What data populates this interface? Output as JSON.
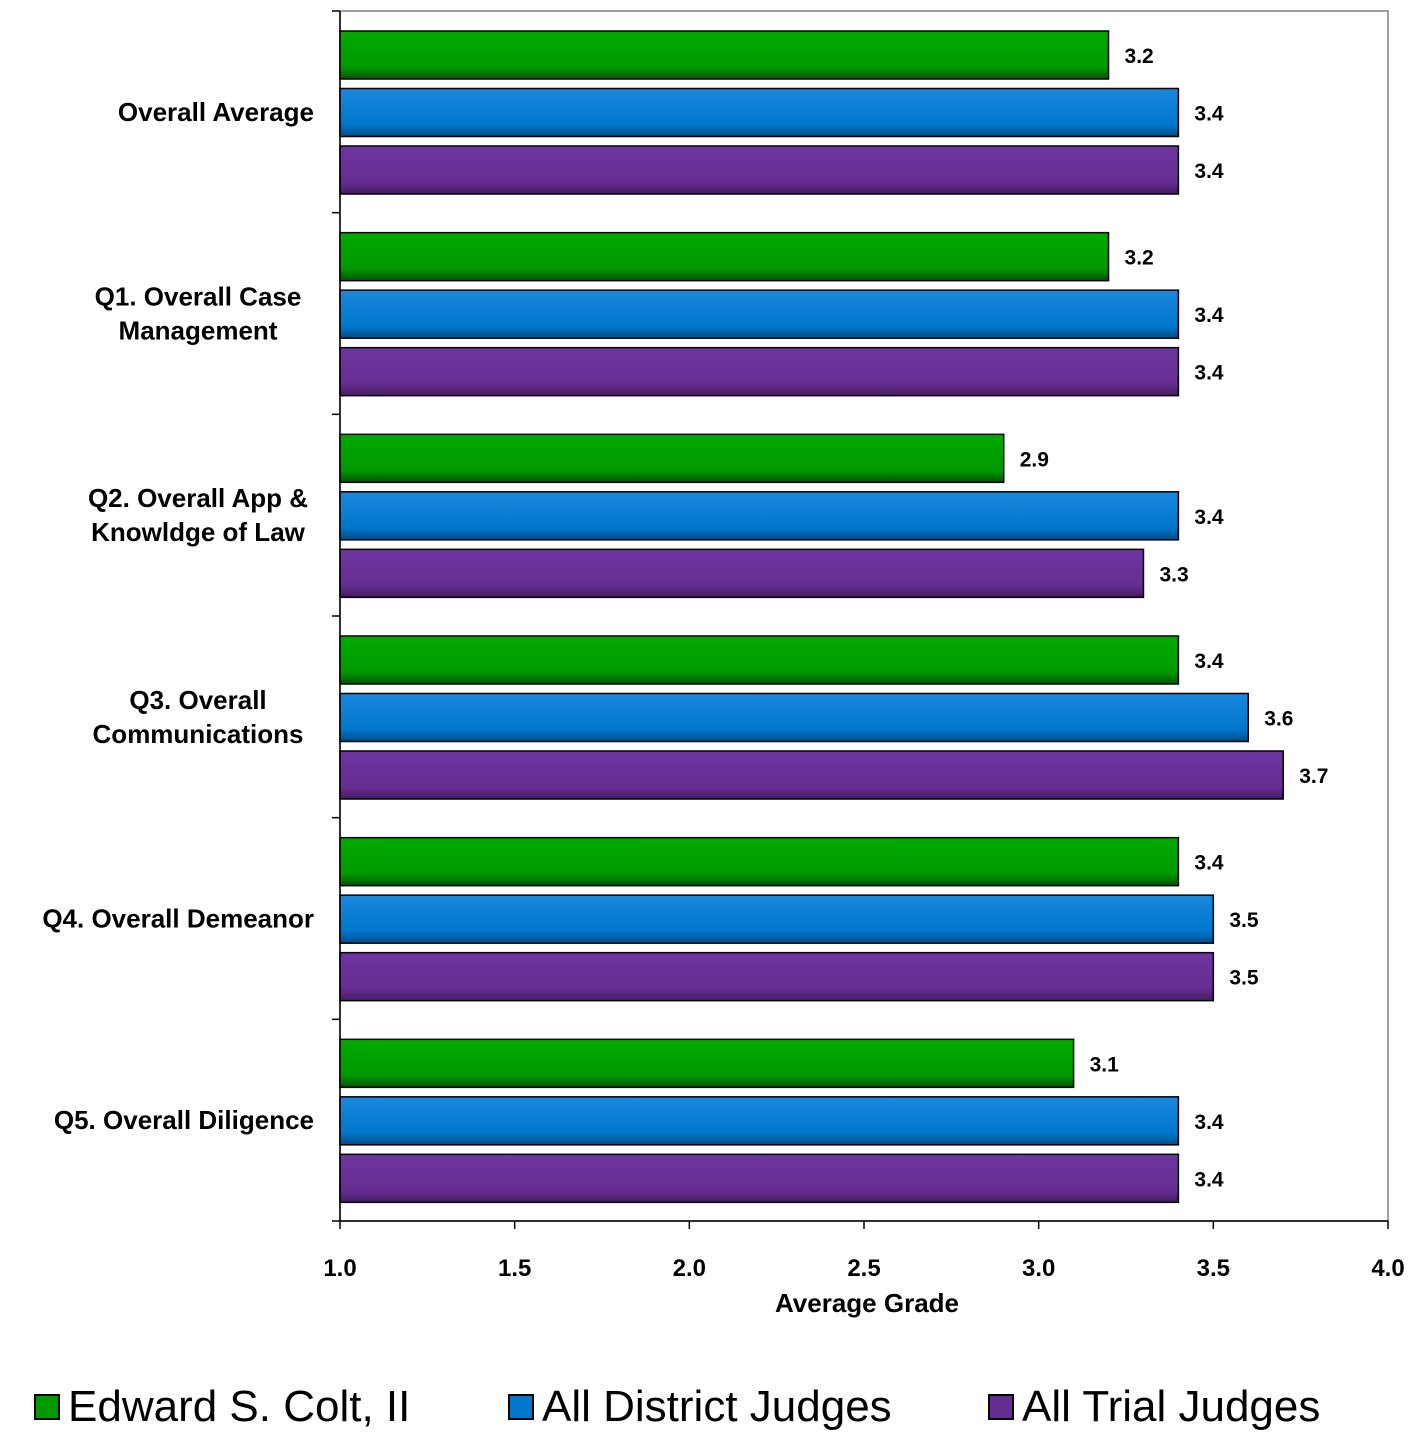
{
  "chart_data": {
    "type": "bar",
    "orientation": "horizontal",
    "categories": [
      "Overall Average",
      "Q1. Overall Case Management",
      "Q2. Overall App & Knowldge of Law",
      "Q3. Overall Communications",
      "Q4. Overall Demeanor",
      "Q5. Overall Diligence"
    ],
    "category_lines": [
      [
        "Overall Average"
      ],
      [
        "Q1. Overall Case",
        "Management"
      ],
      [
        "Q2. Overall App &",
        "Knowldge of Law"
      ],
      [
        "Q3. Overall",
        "Communications"
      ],
      [
        "Q4. Overall Demeanor"
      ],
      [
        "Q5. Overall Diligence"
      ]
    ],
    "series": [
      {
        "name": "Edward S. Colt, II",
        "color": "#009900",
        "values": [
          3.2,
          3.2,
          2.9,
          3.4,
          3.4,
          3.1
        ],
        "labels": [
          "3.2",
          "3.2",
          "2.9",
          "3.4",
          "3.4",
          "3.1"
        ]
      },
      {
        "name": "All District Judges",
        "color": "#0077CC",
        "values": [
          3.4,
          3.4,
          3.4,
          3.6,
          3.5,
          3.4
        ],
        "labels": [
          "3.4",
          "3.4",
          "3.4",
          "3.6",
          "3.5",
          "3.4"
        ]
      },
      {
        "name": "All Trial Judges",
        "color": "#662D91",
        "values": [
          3.4,
          3.4,
          3.3,
          3.7,
          3.5,
          3.4
        ],
        "labels": [
          "3.4",
          "3.4",
          "3.3",
          "3.7",
          "3.5",
          "3.4"
        ]
      }
    ],
    "xlim": [
      1.0,
      4.0
    ],
    "xticks": [
      1.0,
      1.5,
      2.0,
      2.5,
      3.0,
      3.5,
      4.0
    ],
    "xtick_labels": [
      "1.0",
      "1.5",
      "2.0",
      "2.5",
      "3.0",
      "3.5",
      "4.0"
    ],
    "xlabel": "Average Grade",
    "ylabel": "",
    "title": "",
    "grid": false,
    "legend_position": "bottom"
  }
}
